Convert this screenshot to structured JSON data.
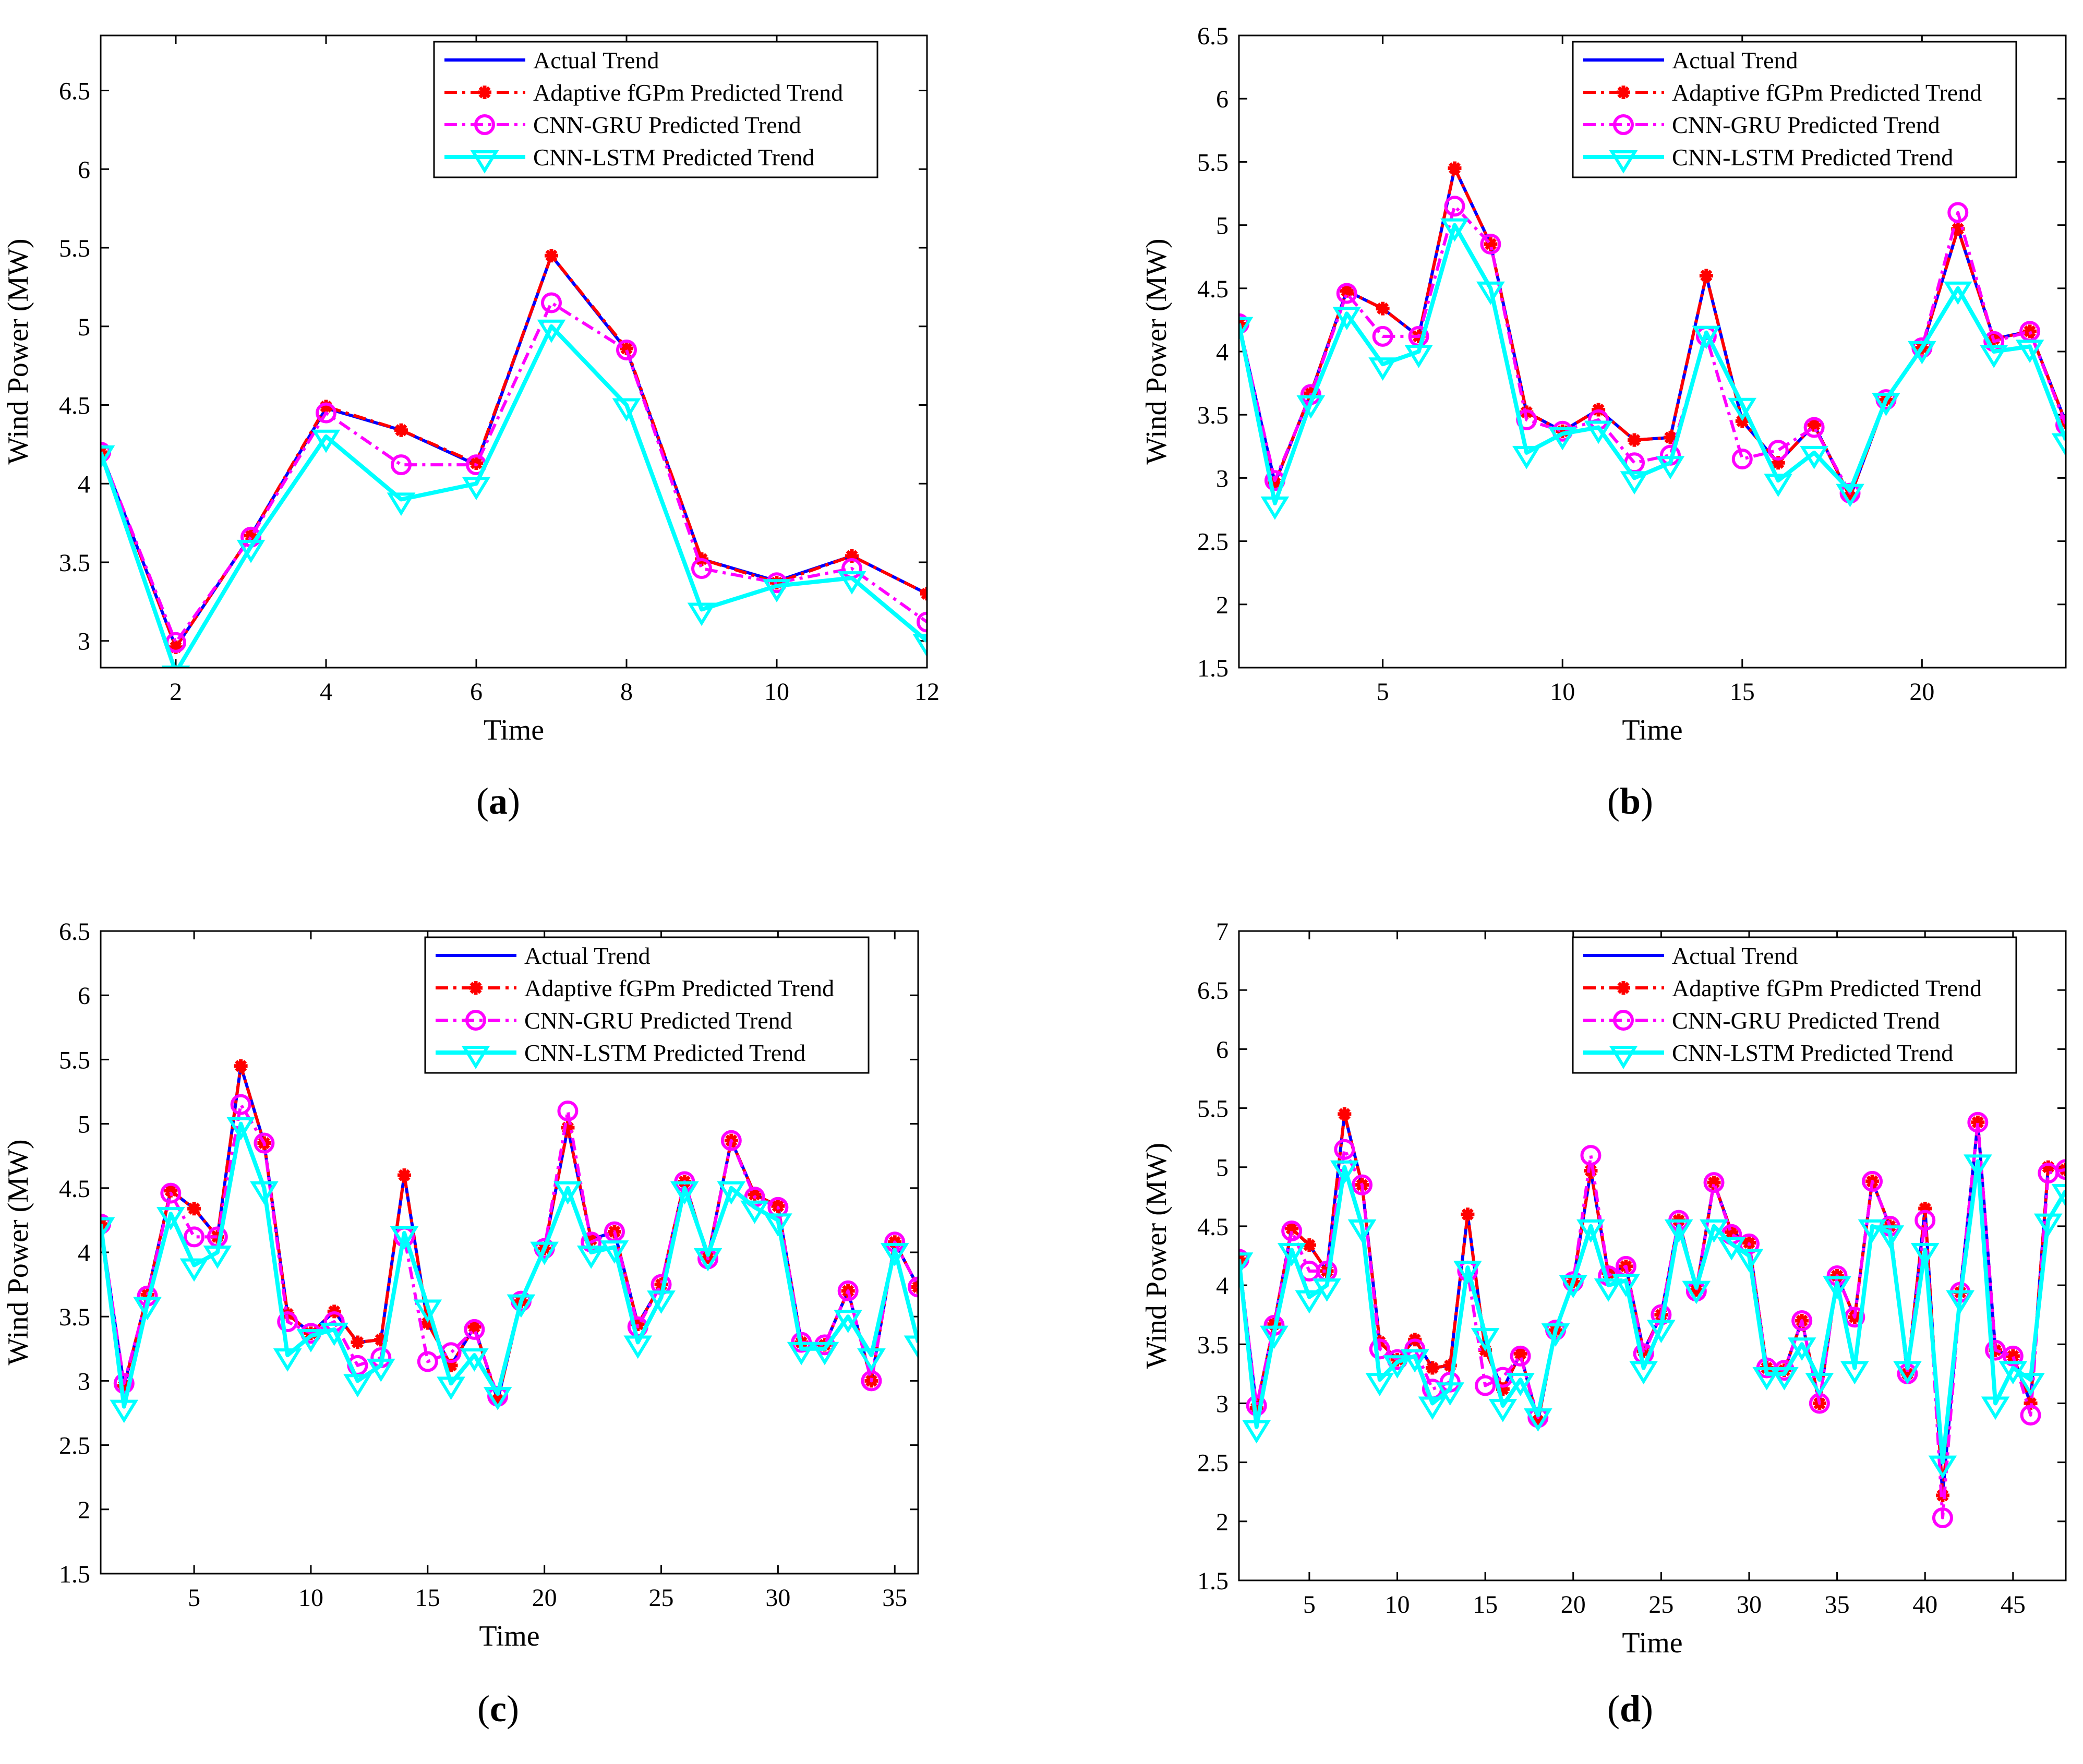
{
  "colors": {
    "actual": "#0000ff",
    "adaptive": "#ff0000",
    "gru": "#ff00ff",
    "lstm": "#00ffff",
    "axis": "#000000",
    "background": "#ffffff"
  },
  "chart_data": [
    {
      "type": "line",
      "caption_label": "a",
      "caption_open": "(",
      "caption_close": ")",
      "xlabel": "Time",
      "ylabel": "Wind Power (MW)",
      "xlim": [
        1,
        12
      ],
      "ylim": [
        2.83,
        6.85
      ],
      "xticks": [
        2,
        4,
        6,
        8,
        10,
        12
      ],
      "yticks": [
        3,
        3.5,
        4,
        4.5,
        5,
        5.5,
        6,
        6.5
      ],
      "legend_position": "top-right",
      "series": [
        {
          "name": "Actual Trend",
          "key": "actual",
          "values": [
            4.2,
            2.96,
            3.67,
            4.48,
            4.34,
            4.12,
            5.45,
            4.85,
            3.52,
            3.38,
            3.54,
            3.3
          ]
        },
        {
          "name": "Adaptive fGPm Predicted Trend",
          "key": "adaptive",
          "values": [
            4.2,
            2.96,
            3.67,
            4.49,
            4.34,
            4.13,
            5.45,
            4.86,
            3.52,
            3.37,
            3.54,
            3.3
          ]
        },
        {
          "name": "CNN-GRU Predicted Trend",
          "key": "gru",
          "values": [
            4.2,
            2.99,
            3.66,
            4.45,
            4.12,
            4.12,
            5.15,
            4.85,
            3.46,
            3.37,
            3.46,
            3.12
          ]
        },
        {
          "name": "CNN-LSTM Predicted Trend",
          "key": "lstm",
          "values": [
            4.2,
            2.8,
            3.6,
            4.3,
            3.9,
            4.0,
            5.0,
            4.5,
            3.2,
            3.35,
            3.4,
            3.0
          ]
        }
      ]
    },
    {
      "type": "line",
      "caption_label": "b",
      "caption_open": "(",
      "caption_close": ")",
      "xlabel": "Time",
      "ylabel": "Wind Power (MW)",
      "xlim": [
        1,
        24
      ],
      "ylim": [
        1.5,
        6.5
      ],
      "xticks": [
        5,
        10,
        15,
        20
      ],
      "yticks": [
        1.5,
        2,
        2.5,
        3,
        3.5,
        4,
        4.5,
        5,
        5.5,
        6,
        6.5
      ],
      "legend_position": "top-right",
      "series": [
        {
          "name": "Actual Trend",
          "key": "actual",
          "values": [
            4.22,
            2.96,
            3.67,
            4.48,
            4.34,
            4.12,
            5.45,
            4.85,
            3.52,
            3.37,
            3.54,
            3.3,
            3.32,
            4.6,
            3.45,
            3.12,
            3.42,
            2.85,
            3.62,
            4.03,
            4.97,
            4.1,
            4.16,
            3.44
          ]
        },
        {
          "name": "Adaptive fGPm Predicted Trend",
          "key": "adaptive",
          "values": [
            4.22,
            2.96,
            3.67,
            4.48,
            4.34,
            4.12,
            5.45,
            4.85,
            3.52,
            3.37,
            3.54,
            3.3,
            3.32,
            4.6,
            3.45,
            3.12,
            3.42,
            2.85,
            3.62,
            4.03,
            4.97,
            4.1,
            4.16,
            3.44
          ]
        },
        {
          "name": "CNN-GRU Predicted Trend",
          "key": "gru",
          "values": [
            4.22,
            2.98,
            3.66,
            4.46,
            4.12,
            4.12,
            5.15,
            4.85,
            3.46,
            3.37,
            3.46,
            3.12,
            3.18,
            4.12,
            3.15,
            3.22,
            3.4,
            2.88,
            3.62,
            4.03,
            5.1,
            4.08,
            4.16,
            3.42
          ]
        },
        {
          "name": "CNN-LSTM Predicted Trend",
          "key": "lstm",
          "values": [
            4.22,
            2.8,
            3.6,
            4.3,
            3.9,
            4.0,
            5.0,
            4.5,
            3.2,
            3.35,
            3.4,
            3.0,
            3.12,
            4.15,
            3.58,
            2.98,
            3.2,
            2.9,
            3.62,
            4.03,
            4.5,
            4.0,
            4.04,
            3.3
          ]
        }
      ]
    },
    {
      "type": "line",
      "caption_label": "c",
      "caption_open": "(",
      "caption_close": ")",
      "xlabel": "Time",
      "ylabel": "Wind Power (MW)",
      "xlim": [
        1,
        36
      ],
      "ylim": [
        1.5,
        6.5
      ],
      "xticks": [
        5,
        10,
        15,
        20,
        25,
        30,
        35
      ],
      "yticks": [
        1.5,
        2,
        2.5,
        3,
        3.5,
        4,
        4.5,
        5,
        5.5,
        6,
        6.5
      ],
      "legend_position": "top-right",
      "series": [
        {
          "name": "Actual Trend",
          "key": "actual",
          "values": [
            4.22,
            2.96,
            3.67,
            4.48,
            4.34,
            4.12,
            5.45,
            4.85,
            3.52,
            3.37,
            3.54,
            3.3,
            3.32,
            4.6,
            3.45,
            3.12,
            3.42,
            2.85,
            3.62,
            4.03,
            4.97,
            4.1,
            4.16,
            3.44,
            3.75,
            4.55,
            3.96,
            4.87,
            4.45,
            4.36,
            3.3,
            3.28,
            3.7,
            3.0,
            4.08,
            3.73
          ]
        },
        {
          "name": "Adaptive fGPm Predicted Trend",
          "key": "adaptive",
          "values": [
            4.22,
            2.96,
            3.67,
            4.48,
            4.34,
            4.12,
            5.45,
            4.85,
            3.52,
            3.37,
            3.54,
            3.3,
            3.32,
            4.6,
            3.45,
            3.12,
            3.42,
            2.85,
            3.62,
            4.03,
            4.97,
            4.1,
            4.16,
            3.44,
            3.75,
            4.55,
            3.96,
            4.87,
            4.45,
            4.36,
            3.3,
            3.28,
            3.7,
            3.0,
            4.08,
            3.73
          ]
        },
        {
          "name": "CNN-GRU Predicted Trend",
          "key": "gru",
          "values": [
            4.22,
            2.98,
            3.66,
            4.46,
            4.12,
            4.12,
            5.15,
            4.85,
            3.46,
            3.37,
            3.46,
            3.12,
            3.18,
            4.12,
            3.15,
            3.22,
            3.4,
            2.88,
            3.62,
            4.03,
            5.1,
            4.08,
            4.16,
            3.42,
            3.75,
            4.55,
            3.95,
            4.87,
            4.43,
            4.35,
            3.3,
            3.28,
            3.7,
            3.0,
            4.08,
            3.73
          ]
        },
        {
          "name": "CNN-LSTM Predicted Trend",
          "key": "lstm",
          "values": [
            4.22,
            2.8,
            3.6,
            4.3,
            3.9,
            4.0,
            5.0,
            4.5,
            3.2,
            3.35,
            3.4,
            3.0,
            3.12,
            4.15,
            3.58,
            2.98,
            3.2,
            2.9,
            3.62,
            4.03,
            4.5,
            4.0,
            4.04,
            3.3,
            3.65,
            4.5,
            3.98,
            4.5,
            4.35,
            4.25,
            3.25,
            3.25,
            3.5,
            3.2,
            4.02,
            3.3
          ]
        }
      ]
    },
    {
      "type": "line",
      "caption_label": "d",
      "caption_open": "(",
      "caption_close": ")",
      "xlabel": "Time",
      "ylabel": "Wind Power (MW)",
      "xlim": [
        1,
        48
      ],
      "ylim": [
        1.5,
        7
      ],
      "xticks": [
        5,
        10,
        15,
        20,
        25,
        30,
        35,
        40,
        45
      ],
      "yticks": [
        1.5,
        2,
        2.5,
        3,
        3.5,
        4,
        4.5,
        5,
        5.5,
        6,
        6.5,
        7
      ],
      "legend_position": "top-right",
      "series": [
        {
          "name": "Actual Trend",
          "key": "actual",
          "values": [
            4.22,
            2.96,
            3.67,
            4.48,
            4.34,
            4.12,
            5.45,
            4.85,
            3.52,
            3.37,
            3.54,
            3.3,
            3.32,
            4.6,
            3.45,
            3.12,
            3.42,
            2.85,
            3.62,
            4.03,
            4.97,
            4.1,
            4.16,
            3.44,
            3.75,
            4.55,
            3.96,
            4.87,
            4.45,
            4.36,
            3.3,
            3.28,
            3.7,
            3.0,
            4.08,
            3.73,
            4.88,
            4.5,
            3.25,
            4.65,
            2.22,
            3.94,
            5.38,
            3.45,
            3.4,
            3.0,
            5.0,
            4.98
          ]
        },
        {
          "name": "Adaptive fGPm Predicted Trend",
          "key": "adaptive",
          "values": [
            4.22,
            2.96,
            3.67,
            4.48,
            4.34,
            4.12,
            5.45,
            4.85,
            3.52,
            3.37,
            3.54,
            3.3,
            3.32,
            4.6,
            3.45,
            3.12,
            3.42,
            2.85,
            3.62,
            4.03,
            4.97,
            4.1,
            4.16,
            3.44,
            3.75,
            4.55,
            3.96,
            4.87,
            4.45,
            4.36,
            3.3,
            3.28,
            3.7,
            3.0,
            4.08,
            3.73,
            4.88,
            4.5,
            3.25,
            4.65,
            2.22,
            3.94,
            5.38,
            3.45,
            3.4,
            3.0,
            5.0,
            4.98
          ]
        },
        {
          "name": "CNN-GRU Predicted Trend",
          "key": "gru",
          "values": [
            4.22,
            2.98,
            3.66,
            4.46,
            4.12,
            4.12,
            5.15,
            4.85,
            3.46,
            3.37,
            3.46,
            3.12,
            3.18,
            4.12,
            3.15,
            3.22,
            3.4,
            2.88,
            3.62,
            4.03,
            5.1,
            4.08,
            4.16,
            3.42,
            3.75,
            4.55,
            3.95,
            4.87,
            4.43,
            4.35,
            3.3,
            3.28,
            3.7,
            3.0,
            4.08,
            3.73,
            4.88,
            4.5,
            3.25,
            4.55,
            2.03,
            3.94,
            5.38,
            3.45,
            3.4,
            2.9,
            4.95,
            4.98
          ]
        },
        {
          "name": "CNN-LSTM Predicted Trend",
          "key": "lstm",
          "values": [
            4.22,
            2.8,
            3.6,
            4.3,
            3.9,
            4.0,
            5.0,
            4.5,
            3.2,
            3.35,
            3.4,
            3.0,
            3.12,
            4.15,
            3.58,
            2.98,
            3.2,
            2.9,
            3.62,
            4.03,
            4.5,
            4.0,
            4.04,
            3.3,
            3.65,
            4.5,
            3.98,
            4.5,
            4.35,
            4.25,
            3.25,
            3.25,
            3.5,
            3.2,
            4.02,
            3.3,
            4.5,
            4.45,
            3.3,
            4.3,
            2.5,
            3.9,
            5.05,
            3.0,
            3.3,
            3.2,
            4.55,
            4.8
          ]
        }
      ]
    }
  ]
}
